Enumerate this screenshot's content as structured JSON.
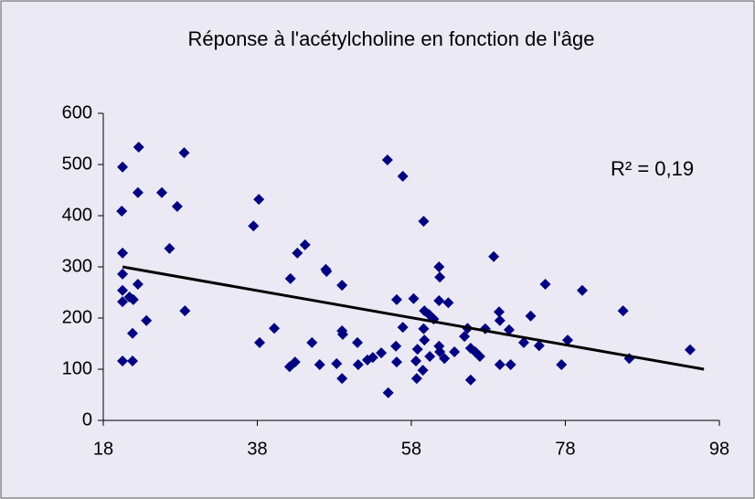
{
  "chart_data": {
    "type": "scatter",
    "title": "Réponse à l'acétylcholine en fonction de l'âge",
    "annotation": "R² = 0,19",
    "color": "#000080",
    "trend_color": "#000000",
    "x": [
      20.5,
      20.4,
      20.5,
      20.5,
      20.5,
      20.5,
      20.5,
      21.8,
      21.8,
      21.9,
      21.4,
      22.6,
      22.5,
      22.5,
      23.6,
      25.6,
      26.6,
      27.6,
      28.5,
      28.6,
      37.5,
      38.2,
      38.3,
      40.2,
      42.3,
      42.2,
      42.9,
      43.2,
      44.2,
      45.1,
      46.1,
      46.9,
      47.0,
      48.3,
      49.0,
      49.0,
      49.1,
      49.0,
      51.0,
      51.1,
      52.3,
      53.0,
      54.1,
      54.9,
      55.0,
      56.1,
      56.0,
      56.1,
      56.9,
      56.9,
      58.3,
      58.6,
      58.7,
      58.8,
      59.6,
      59.7,
      59.6,
      59.7,
      59.5,
      60.3,
      60.4,
      60.9,
      61.6,
      61.7,
      61.6,
      61.6,
      61.7,
      62.3,
      62.8,
      63.6,
      64.9,
      65.3,
      65.7,
      65.7,
      66.3,
      66.9,
      67.6,
      68.7,
      69.4,
      69.5,
      69.5,
      70.7,
      70.9,
      72.6,
      73.5,
      74.6,
      75.4,
      77.5,
      78.3,
      80.2,
      85.5,
      86.3,
      94.2
    ],
    "values": [
      495,
      409,
      327,
      286,
      254,
      232,
      116,
      116,
      170,
      236,
      241,
      534,
      445,
      266,
      195,
      445,
      336,
      418,
      523,
      214,
      380,
      432,
      152,
      180,
      277,
      105,
      114,
      327,
      343,
      152,
      109,
      295,
      291,
      111,
      264,
      175,
      168,
      82,
      152,
      109,
      118,
      123,
      132,
      509,
      54,
      236,
      145,
      114,
      477,
      182,
      238,
      116,
      82,
      139,
      389,
      214,
      179,
      157,
      98,
      207,
      125,
      198,
      300,
      280,
      234,
      145,
      134,
      121,
      230,
      134,
      164,
      180,
      79,
      141,
      134,
      125,
      179,
      320,
      212,
      195,
      109,
      177,
      109,
      152,
      204,
      146,
      266,
      109,
      157,
      254,
      214,
      121,
      138
    ],
    "trendline": {
      "x": [
        20.5,
        96
      ],
      "values": [
        300,
        100
      ]
    },
    "xlim": [
      18,
      98
    ],
    "xticks": [
      18,
      38,
      58,
      78,
      98
    ],
    "ylim": [
      0,
      600
    ],
    "yticks": [
      0,
      100,
      200,
      300,
      400,
      500,
      600
    ]
  }
}
